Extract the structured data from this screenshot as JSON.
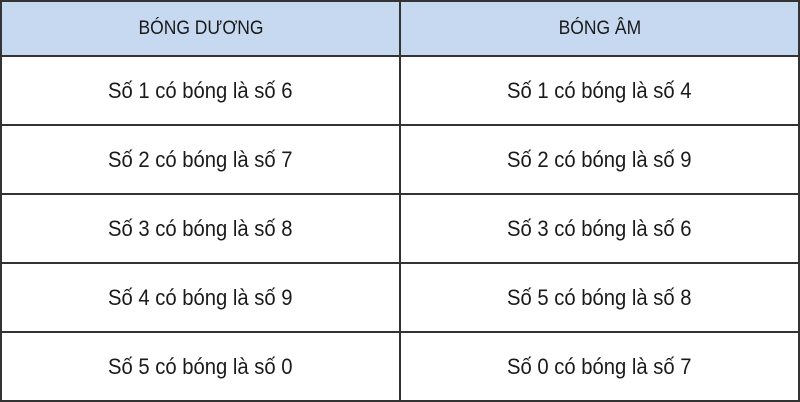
{
  "table": {
    "header_bg": "#c6d9f1",
    "headers": [
      "BÓNG DƯƠNG",
      "BÓNG ÂM"
    ],
    "rows": [
      [
        "Số 1 có bóng là số 6",
        "Số 1 có bóng là số 4"
      ],
      [
        "Số 2 có bóng là số 7",
        "Số 2 có bóng là số 9"
      ],
      [
        "Số 3 có bóng là số 8",
        "Số 3 có bóng là số 6"
      ],
      [
        "Số 4 có bóng là số 9",
        "Số 5 có bóng là số 8"
      ],
      [
        "Số 5 có bóng là số 0",
        "Số 0 có bóng là số 7"
      ]
    ]
  }
}
